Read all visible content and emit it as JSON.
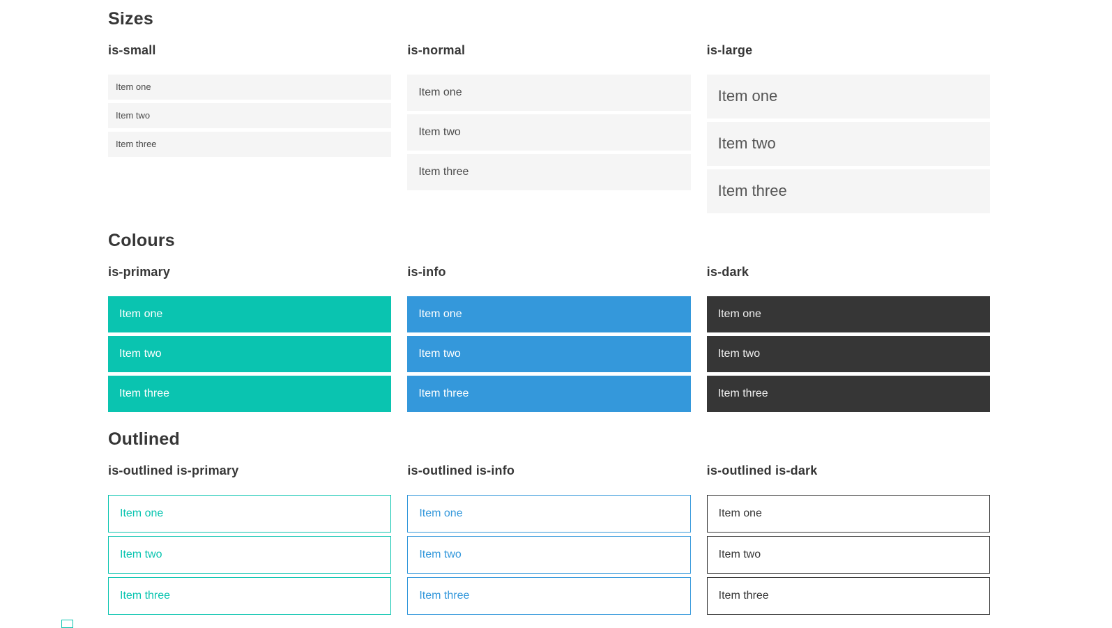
{
  "colors": {
    "primary": "#0ac4b0",
    "info": "#3498db",
    "dark": "#363636",
    "light": "#f5f5f5",
    "text": "#4a4a4a",
    "heading": "#363636"
  },
  "sections": [
    {
      "title": "Sizes",
      "examples": [
        {
          "label": "is-small",
          "items": [
            "Item one",
            "Item two",
            "Item three"
          ]
        },
        {
          "label": "is-normal",
          "items": [
            "Item one",
            "Item two",
            "Item three"
          ]
        },
        {
          "label": "is-large",
          "items": [
            "Item one",
            "Item two",
            "Item three"
          ]
        }
      ]
    },
    {
      "title": "Colours",
      "examples": [
        {
          "label": "is-primary",
          "items": [
            "Item one",
            "Item two",
            "Item three"
          ]
        },
        {
          "label": "is-info",
          "items": [
            "Item one",
            "Item two",
            "Item three"
          ]
        },
        {
          "label": "is-dark",
          "items": [
            "Item one",
            "Item two",
            "Item three"
          ]
        }
      ]
    },
    {
      "title": "Outlined",
      "examples": [
        {
          "label": "is-outlined is-primary",
          "items": [
            "Item one",
            "Item two",
            "Item three"
          ]
        },
        {
          "label": "is-outlined is-info",
          "items": [
            "Item one",
            "Item two",
            "Item three"
          ]
        },
        {
          "label": "is-outlined is-dark",
          "items": [
            "Item one",
            "Item two",
            "Item three"
          ]
        }
      ]
    }
  ]
}
